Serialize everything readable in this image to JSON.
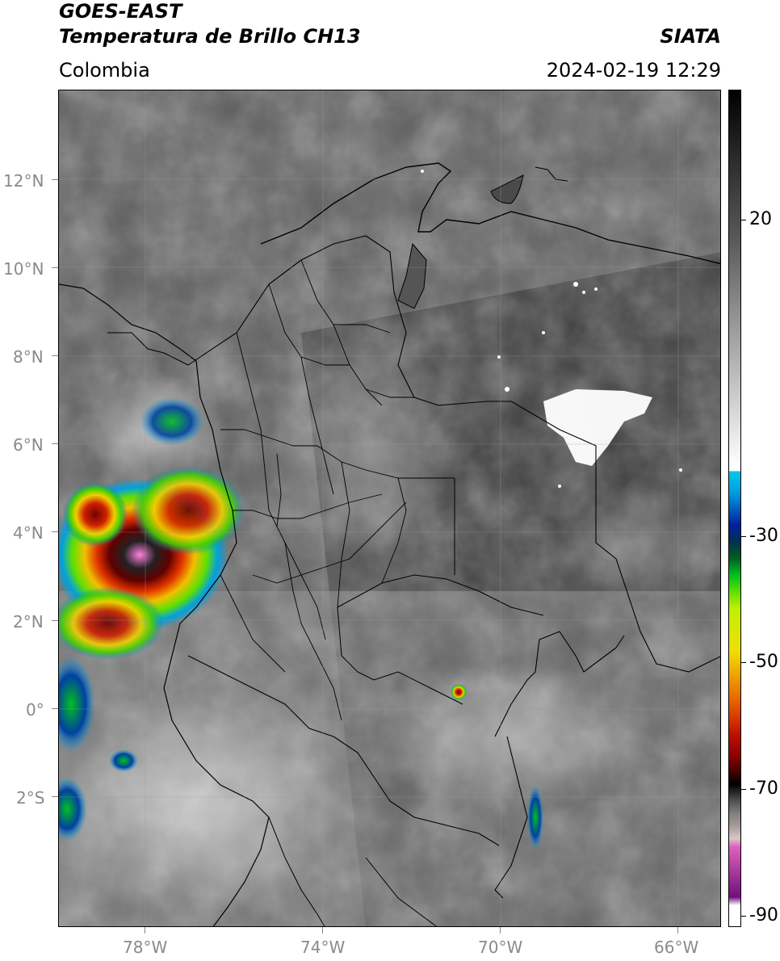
{
  "header": {
    "satellite": "GOES-EAST",
    "product": "Temperatura de Brillo CH13",
    "region": "Colombia",
    "institution": "SIATA",
    "datetime": "2024-02-19 12:29"
  },
  "map": {
    "lat_labels": [
      "12°N",
      "10°N",
      "8°N",
      "6°N",
      "4°N",
      "2°N",
      "0°",
      "2°S"
    ],
    "lon_labels": [
      "78°W",
      "74°W",
      "70°W",
      "66°W"
    ]
  },
  "colorbar": {
    "labels": [
      "20",
      "-30",
      "-50",
      "-70",
      "-90"
    ],
    "colors": {
      "warm_top": "#000000",
      "mid_gray": "#8c8c8c",
      "cyan": "#00c8e8",
      "green": "#00c020",
      "yellow": "#f0e000",
      "red": "#c01000",
      "magenta": "#e060c0",
      "purple": "#701080"
    }
  }
}
